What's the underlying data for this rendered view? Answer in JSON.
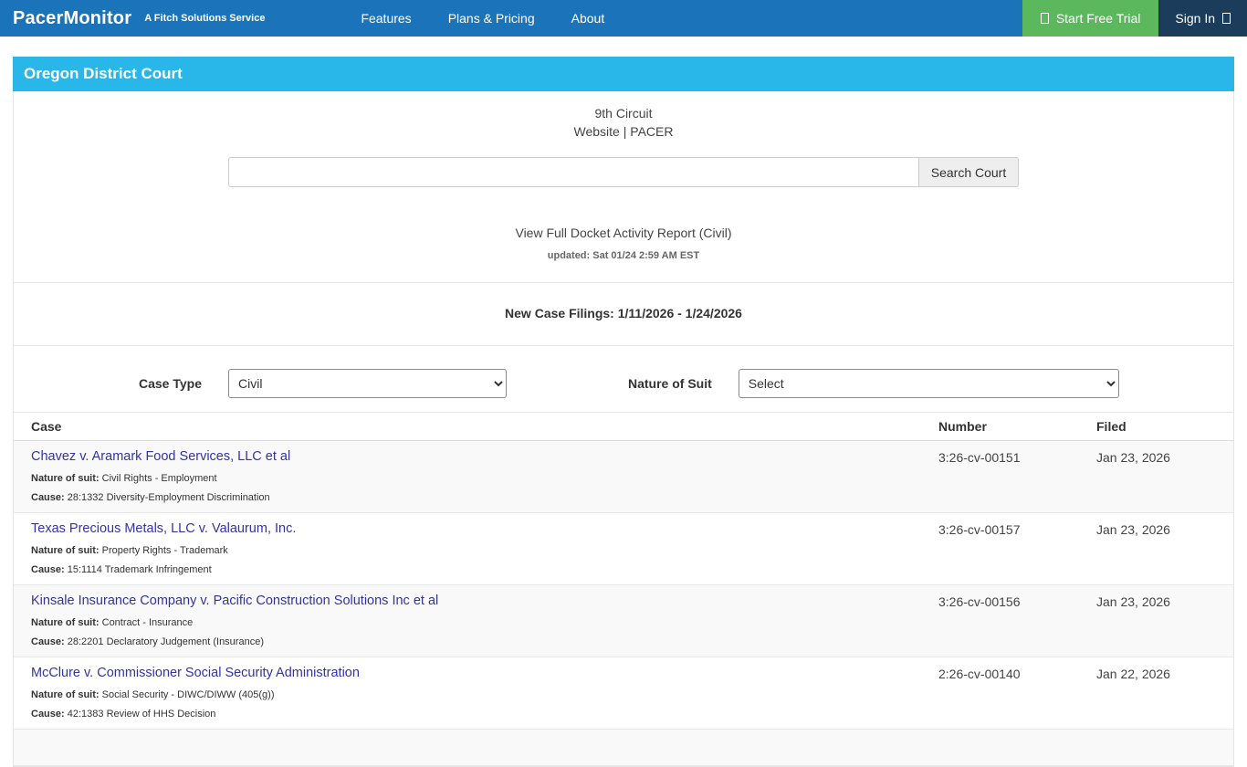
{
  "colors": {
    "brand-blue": "#1b74b9",
    "trial-green": "#5cb85c",
    "signin-navy": "#1b3c5a",
    "court-cyan": "#29b6e8",
    "case-link": "#3333a2"
  },
  "navbar": {
    "brand": "PacerMonitor",
    "tagline": "A Fitch Solutions Service",
    "links": [
      {
        "label": "Features"
      },
      {
        "label": "Plans & Pricing"
      },
      {
        "label": "About"
      }
    ],
    "start_trial_label": "Start Free Trial",
    "sign_in_label": "Sign In"
  },
  "court": {
    "title": "Oregon District Court",
    "circuit": "9th Circuit",
    "website_link": "Website",
    "link_separator": "|",
    "pacer_link": "PACER",
    "search": {
      "value": "",
      "button_label": "Search Court"
    },
    "docket_report_link": "View Full Docket Activity Report (Civil)",
    "updated": "updated: Sat 01/24 2:59 AM EST"
  },
  "filings": {
    "heading": "New Case Filings: 1/11/2026 - 1/24/2026",
    "filters": {
      "case_type_label": "Case Type",
      "case_type_value": "Civil",
      "nature_label": "Nature of Suit",
      "nature_value": "Select"
    },
    "table": {
      "headers": [
        "Case",
        "Number",
        "Filed"
      ],
      "nature_prefix": "Nature of suit:",
      "cause_prefix": "Cause:",
      "rows": [
        {
          "case": "Chavez v. Aramark Food Services, LLC et al",
          "nature": "Civil Rights - Employment",
          "cause": "28:1332 Diversity-Employment Discrimination",
          "number": "3:26-cv-00151",
          "filed": "Jan 23, 2026"
        },
        {
          "case": "Texas Precious Metals, LLC v. Valaurum, Inc.",
          "nature": "Property Rights - Trademark",
          "cause": "15:1114 Trademark Infringement",
          "number": "3:26-cv-00157",
          "filed": "Jan 23, 2026"
        },
        {
          "case": "Kinsale Insurance Company v. Pacific Construction Solutions Inc et al",
          "nature": "Contract - Insurance",
          "cause": "28:2201 Declaratory Judgement (Insurance)",
          "number": "3:26-cv-00156",
          "filed": "Jan 23, 2026"
        },
        {
          "case": "McClure v. Commissioner Social Security Administration",
          "nature": "Social Security - DIWC/DIWW (405(g))",
          "cause": "42:1383 Review of HHS Decision",
          "number": "2:26-cv-00140",
          "filed": "Jan 22, 2026"
        }
      ]
    }
  }
}
